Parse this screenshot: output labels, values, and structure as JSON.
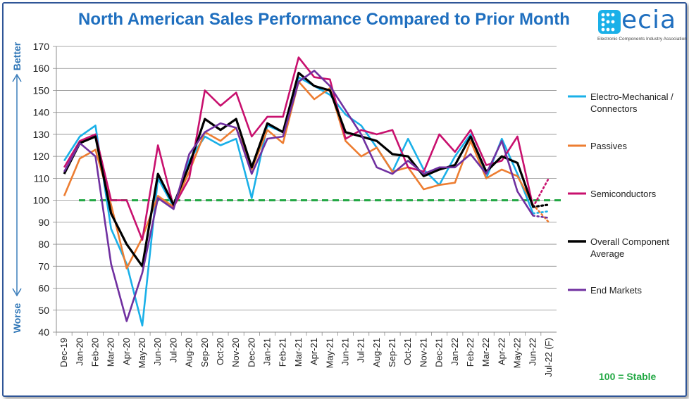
{
  "chart_data": {
    "type": "line",
    "title": "North American Sales Performance Compared to Prior Month",
    "categories": [
      "Dec-19",
      "Jan-20",
      "Feb-20",
      "Mar-20",
      "Apr-20",
      "May-20",
      "Jun-20",
      "Jul-20",
      "Aug-20",
      "Sep-20",
      "Oct-20",
      "Nov-20",
      "Dec-20",
      "Jan-21",
      "Feb-21",
      "Mar-21",
      "Apr-21",
      "May-21",
      "Jun-21",
      "Jul-21",
      "Aug-21",
      "Sep-21",
      "Oct-21",
      "Nov-21",
      "Dec-21",
      "Jan-22",
      "Feb-22",
      "Mar-22",
      "Apr-22",
      "May-22",
      "Jun-22",
      "Jul-22 (F)"
    ],
    "ylim": [
      40,
      170
    ],
    "yticks": [
      40,
      50,
      60,
      70,
      80,
      90,
      100,
      110,
      120,
      130,
      140,
      150,
      160,
      170
    ],
    "reference_line": 100,
    "series": [
      {
        "name": "Electro-Mechanical / Connectors",
        "color": "#1ab0e8",
        "values": [
          118,
          129,
          134,
          87,
          71,
          43,
          110,
          97,
          118,
          129,
          125,
          128,
          101,
          134,
          131,
          156,
          152,
          148,
          139,
          134,
          124,
          113,
          128,
          114,
          107,
          120,
          130,
          110,
          128,
          112,
          94,
          95
        ]
      },
      {
        "name": "Passives",
        "color": "#ed7d31",
        "values": [
          102,
          119,
          123,
          98,
          69,
          83,
          102,
          97,
          113,
          131,
          127,
          133,
          114,
          132,
          126,
          154,
          146,
          151,
          127,
          120,
          124,
          113,
          115,
          105,
          107,
          108,
          127,
          110,
          114,
          111,
          98,
          90
        ]
      },
      {
        "name": "Semiconductors",
        "color": "#c8106e",
        "values": [
          115,
          127,
          130,
          100,
          100,
          82,
          125,
          97,
          110,
          150,
          143,
          149,
          129,
          138,
          138,
          165,
          156,
          155,
          128,
          132,
          130,
          132,
          115,
          113,
          130,
          122,
          132,
          116,
          118,
          129,
          97,
          110
        ]
      },
      {
        "name": "Overall Component Average",
        "color": "#000000",
        "values": [
          112,
          126,
          129,
          94,
          80,
          70,
          112,
          98,
          116,
          137,
          132,
          137,
          115,
          135,
          131,
          158,
          152,
          150,
          131,
          129,
          127,
          121,
          120,
          111,
          114,
          116,
          129,
          113,
          120,
          117,
          97,
          98
        ]
      },
      {
        "name": "End Markets",
        "color": "#7030a0",
        "values": [
          113,
          126,
          120,
          71,
          45,
          67,
          101,
          96,
          121,
          131,
          135,
          133,
          112,
          128,
          129,
          154,
          159,
          152,
          141,
          130,
          115,
          112,
          118,
          112,
          115,
          115,
          121,
          112,
          127,
          104,
          93,
          92
        ]
      }
    ],
    "y_side_labels": {
      "top": "Better",
      "bottom": "Worse"
    },
    "note": "100 = Stable"
  },
  "logo": {
    "word": "ecia",
    "subtitle": "Electronic Components Industry Association"
  }
}
